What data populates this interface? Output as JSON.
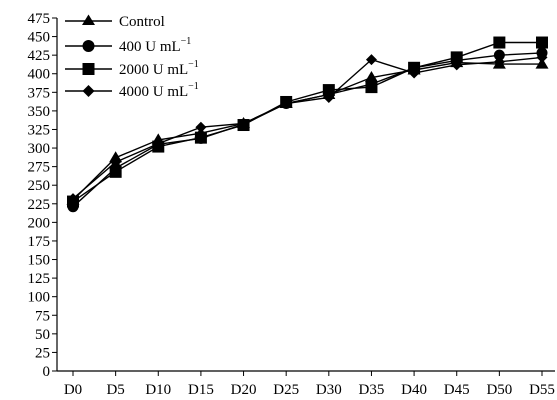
{
  "chart_data": {
    "type": "line",
    "title": "",
    "xlabel": "",
    "ylabel": "",
    "categories": [
      "D0",
      "D5",
      "D10",
      "D15",
      "D20",
      "D25",
      "D30",
      "D35",
      "D40",
      "D45",
      "D50",
      "D55"
    ],
    "ylim": [
      0,
      475
    ],
    "yticks": [
      0,
      25,
      50,
      75,
      100,
      125,
      150,
      175,
      200,
      225,
      250,
      275,
      300,
      325,
      350,
      375,
      400,
      425,
      450,
      475
    ],
    "grid": false,
    "legend_position": "top-left",
    "series": [
      {
        "name": "Control",
        "marker": "triangle",
        "values": [
          230,
          287,
          311,
          320,
          333,
          360,
          372,
          395,
          405,
          415,
          413,
          413
        ]
      },
      {
        "name_main": "400 U mL",
        "name_sup": "−1",
        "marker": "circle",
        "values": [
          221,
          273,
          305,
          313,
          332,
          360,
          372,
          386,
          408,
          418,
          425,
          428
        ]
      },
      {
        "name_main": "2000 U mL",
        "name_sup": "−1",
        "marker": "square",
        "values": [
          228,
          268,
          302,
          314,
          331,
          362,
          378,
          382,
          408,
          422,
          442,
          442
        ]
      },
      {
        "name_main": "4000 U mL",
        "name_sup": "−1",
        "marker": "diamond",
        "values": [
          232,
          281,
          306,
          328,
          333,
          360,
          368,
          419,
          401,
          412,
          416,
          422
        ]
      }
    ]
  }
}
